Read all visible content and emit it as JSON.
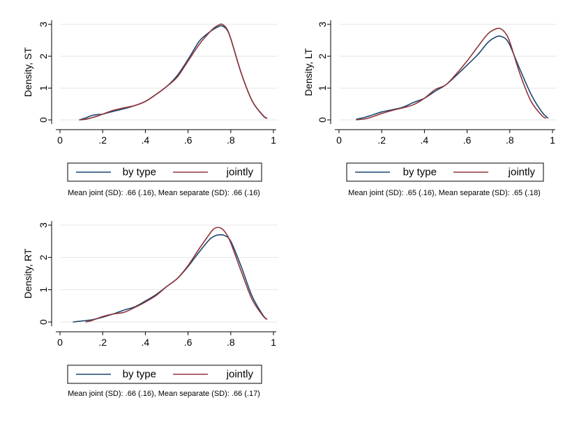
{
  "chart_data": [
    {
      "type": "line",
      "ylabel": "Density, ST",
      "xlim": [
        0,
        1
      ],
      "ylim": [
        0,
        3
      ],
      "x_ticks": [
        0,
        0.2,
        0.4,
        0.6,
        0.8,
        1
      ],
      "x_tick_labels": [
        "0",
        ".2",
        ".4",
        ".6",
        ".8",
        "1"
      ],
      "y_ticks": [
        0,
        1,
        2,
        3
      ],
      "y_tick_labels": [
        "0",
        "1",
        "2",
        "3"
      ],
      "legend_position": "bottom",
      "note": "Mean joint (SD): .66 (.16),  Mean separate (SD): .66 (.16)",
      "series": [
        {
          "name": "by type",
          "color": "#1a476f",
          "x": [
            0.09,
            0.12,
            0.15,
            0.18,
            0.2,
            0.25,
            0.3,
            0.35,
            0.4,
            0.45,
            0.5,
            0.55,
            0.6,
            0.65,
            0.68,
            0.72,
            0.75,
            0.76,
            0.78,
            0.8,
            0.85,
            0.9,
            0.95,
            0.97
          ],
          "y": [
            0.0,
            0.06,
            0.14,
            0.17,
            0.18,
            0.27,
            0.35,
            0.45,
            0.58,
            0.8,
            1.05,
            1.4,
            1.9,
            2.45,
            2.65,
            2.85,
            2.95,
            2.95,
            2.85,
            2.55,
            1.45,
            0.6,
            0.14,
            0.04
          ]
        },
        {
          "name": "jointly",
          "color": "#90353b",
          "x": [
            0.09,
            0.12,
            0.15,
            0.18,
            0.2,
            0.25,
            0.3,
            0.35,
            0.4,
            0.45,
            0.5,
            0.55,
            0.6,
            0.65,
            0.68,
            0.72,
            0.75,
            0.76,
            0.78,
            0.8,
            0.85,
            0.9,
            0.95,
            0.97
          ],
          "y": [
            0.0,
            0.02,
            0.07,
            0.13,
            0.18,
            0.3,
            0.38,
            0.45,
            0.58,
            0.8,
            1.05,
            1.35,
            1.85,
            2.35,
            2.6,
            2.88,
            3.0,
            3.0,
            2.88,
            2.55,
            1.45,
            0.6,
            0.15,
            0.05
          ]
        }
      ]
    },
    {
      "type": "line",
      "ylabel": "Density, LT",
      "xlim": [
        0,
        1
      ],
      "ylim": [
        0,
        3
      ],
      "x_ticks": [
        0,
        0.2,
        0.4,
        0.6,
        0.8,
        1
      ],
      "x_tick_labels": [
        "0",
        ".2",
        ".4",
        ".6",
        ".8",
        "1"
      ],
      "y_ticks": [
        0,
        1,
        2,
        3
      ],
      "y_tick_labels": [
        "0",
        "1",
        "2",
        "3"
      ],
      "legend_position": "bottom",
      "note": "Mean joint (SD): .65 (.16),  Mean separate (SD): .65 (.18)",
      "series": [
        {
          "name": "by type",
          "color": "#1a476f",
          "x": [
            0.08,
            0.12,
            0.15,
            0.2,
            0.25,
            0.3,
            0.35,
            0.4,
            0.45,
            0.5,
            0.55,
            0.6,
            0.65,
            0.7,
            0.74,
            0.76,
            0.78,
            0.8,
            0.85,
            0.9,
            0.95,
            0.98
          ],
          "y": [
            0.02,
            0.08,
            0.14,
            0.25,
            0.32,
            0.4,
            0.55,
            0.68,
            0.9,
            1.1,
            1.4,
            1.72,
            2.05,
            2.45,
            2.62,
            2.62,
            2.55,
            2.35,
            1.55,
            0.8,
            0.25,
            0.05
          ]
        },
        {
          "name": "jointly",
          "color": "#90353b",
          "x": [
            0.08,
            0.12,
            0.15,
            0.2,
            0.25,
            0.3,
            0.35,
            0.4,
            0.45,
            0.5,
            0.55,
            0.6,
            0.65,
            0.7,
            0.74,
            0.76,
            0.78,
            0.8,
            0.85,
            0.9,
            0.95,
            0.97
          ],
          "y": [
            0.0,
            0.03,
            0.08,
            0.2,
            0.3,
            0.38,
            0.48,
            0.68,
            0.95,
            1.1,
            1.45,
            1.85,
            2.3,
            2.72,
            2.87,
            2.85,
            2.72,
            2.45,
            1.4,
            0.58,
            0.14,
            0.05
          ]
        }
      ]
    },
    {
      "type": "line",
      "ylabel": "Density, RT",
      "xlim": [
        0,
        1
      ],
      "ylim": [
        0,
        3
      ],
      "x_ticks": [
        0,
        0.2,
        0.4,
        0.6,
        0.8,
        1
      ],
      "x_tick_labels": [
        "0",
        ".2",
        ".4",
        ".6",
        ".8",
        "1"
      ],
      "y_ticks": [
        0,
        1,
        2,
        3
      ],
      "y_tick_labels": [
        "0",
        "1",
        "2",
        "3"
      ],
      "legend_position": "bottom",
      "note": "Mean joint (SD): .66 (.16),  Mean separate (SD): .66 (.17)",
      "series": [
        {
          "name": "by type",
          "color": "#1a476f",
          "x": [
            0.06,
            0.1,
            0.15,
            0.2,
            0.25,
            0.3,
            0.35,
            0.4,
            0.45,
            0.5,
            0.55,
            0.6,
            0.65,
            0.7,
            0.73,
            0.75,
            0.77,
            0.8,
            0.85,
            0.9,
            0.95,
            0.97
          ],
          "y": [
            0.0,
            0.03,
            0.07,
            0.15,
            0.25,
            0.37,
            0.47,
            0.65,
            0.85,
            1.1,
            1.35,
            1.72,
            2.15,
            2.55,
            2.68,
            2.7,
            2.68,
            2.5,
            1.7,
            0.8,
            0.22,
            0.08
          ]
        },
        {
          "name": "jointly",
          "color": "#90353b",
          "x": [
            0.12,
            0.15,
            0.2,
            0.25,
            0.3,
            0.35,
            0.4,
            0.45,
            0.5,
            0.55,
            0.6,
            0.65,
            0.7,
            0.72,
            0.74,
            0.76,
            0.78,
            0.8,
            0.85,
            0.9,
            0.95,
            0.97
          ],
          "y": [
            0.0,
            0.05,
            0.17,
            0.25,
            0.3,
            0.45,
            0.62,
            0.82,
            1.1,
            1.35,
            1.75,
            2.25,
            2.72,
            2.88,
            2.93,
            2.88,
            2.72,
            2.45,
            1.55,
            0.7,
            0.2,
            0.08
          ]
        }
      ]
    }
  ]
}
